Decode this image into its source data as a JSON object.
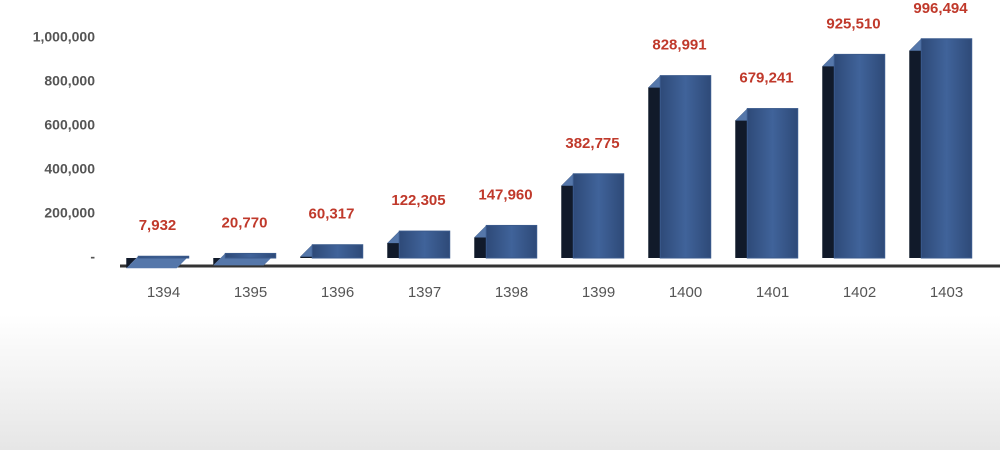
{
  "chart_data": {
    "type": "bar",
    "categories": [
      "1394",
      "1395",
      "1396",
      "1397",
      "1398",
      "1399",
      "1400",
      "1401",
      "1402",
      "1403"
    ],
    "values": [
      7932,
      20770,
      60317,
      122305,
      147960,
      382775,
      828991,
      679241,
      925510,
      996494
    ],
    "value_labels": [
      "7,932",
      "20,770",
      "60,317",
      "122,305",
      "147,960",
      "382,775",
      "828,991",
      "679,241",
      "925,510",
      "996,494"
    ],
    "color": "#3a5a8c",
    "label_color": "#c0392b",
    "ylim": [
      0,
      1000000
    ],
    "yticks": [
      {
        "value": 0,
        "label": "-"
      },
      {
        "value": 200000,
        "label": "200,000"
      },
      {
        "value": 400000,
        "label": "400,000"
      },
      {
        "value": 600000,
        "label": "600,000"
      },
      {
        "value": 800000,
        "label": "800,000"
      },
      {
        "value": 1000000,
        "label": "1,000,000"
      }
    ],
    "grid": false
  }
}
